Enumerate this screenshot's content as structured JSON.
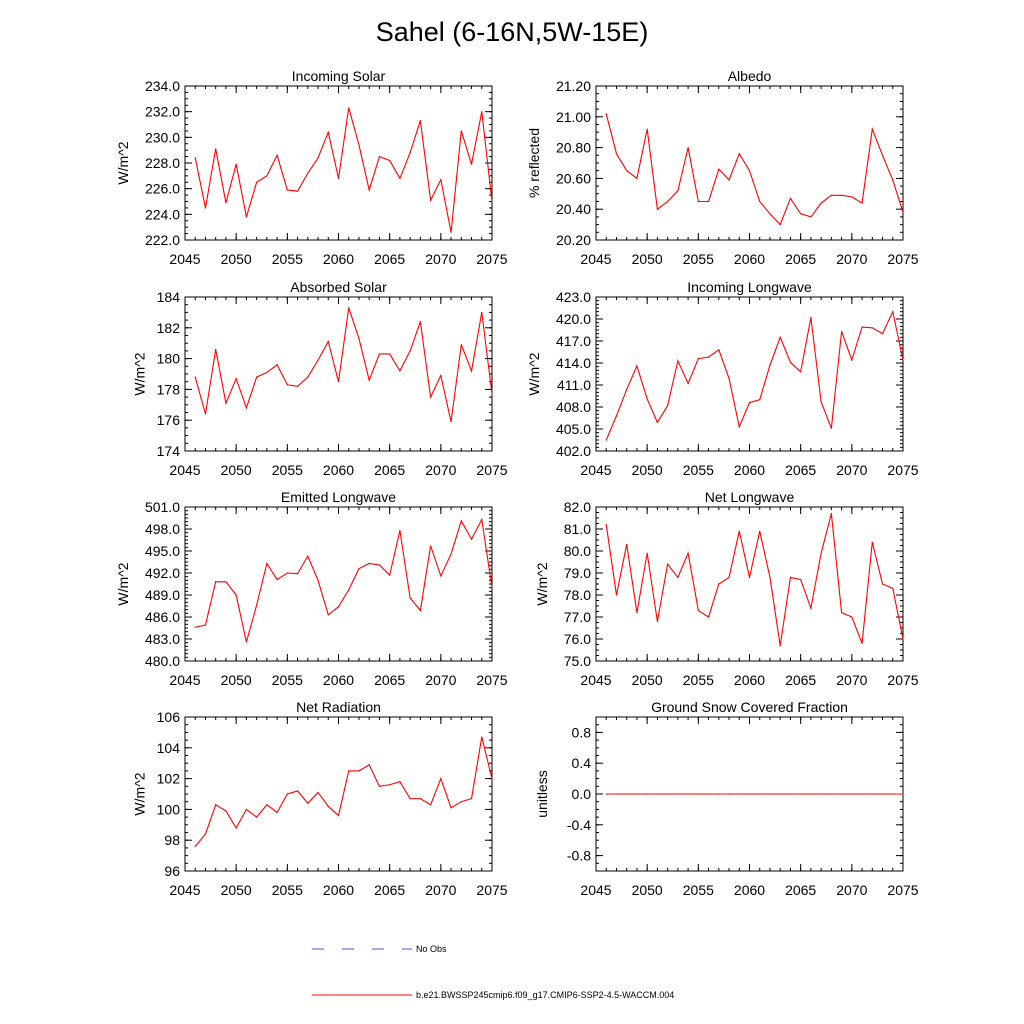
{
  "figure_title": "Sahel (6-16N,5W-15E)",
  "colors": {
    "model": "#ff0000",
    "obs": "#4a5ad8",
    "axis": "#000000"
  },
  "legend": {
    "obs_label": "No Obs",
    "model_label": "b.e21.BWSSP245cmip6.f09_g17.CMIP6-SSP2-4.5-WACCM.004"
  },
  "chart_data": [
    {
      "type": "line",
      "title": "Incoming Solar",
      "xlabel": "",
      "ylabel": "W/m^2",
      "xlim": [
        2045,
        2075
      ],
      "ylim": [
        222,
        234
      ],
      "xticks": [
        2045,
        2050,
        2055,
        2060,
        2065,
        2070,
        2075
      ],
      "yticks": [
        222,
        224,
        226,
        228,
        230,
        232,
        234
      ],
      "ytick_labels": [
        "222.0",
        "224.0",
        "226.0",
        "228.0",
        "230.0",
        "232.0",
        "234.0"
      ],
      "yminor_step": 0.5,
      "xminor_step": 1,
      "series": [
        {
          "name": "b.e21.BWSSP245cmip6.f09_g17.CMIP6-SSP2-4.5-WACCM.004",
          "x": [
            2046,
            2047,
            2048,
            2049,
            2050,
            2051,
            2052,
            2053,
            2054,
            2055,
            2056,
            2057,
            2058,
            2059,
            2060,
            2061,
            2062,
            2063,
            2064,
            2065,
            2066,
            2067,
            2068,
            2069,
            2070,
            2071,
            2072,
            2073,
            2074,
            2075
          ],
          "values": [
            228.4,
            224.5,
            229.1,
            224.9,
            227.9,
            223.8,
            226.5,
            227.0,
            228.6,
            225.9,
            225.8,
            227.2,
            228.4,
            230.4,
            226.8,
            232.3,
            229.4,
            225.9,
            228.5,
            228.2,
            226.8,
            228.8,
            231.3,
            225.1,
            226.7,
            222.6,
            230.5,
            227.9,
            232.0,
            225.0
          ]
        }
      ]
    },
    {
      "type": "line",
      "title": "Albedo",
      "xlabel": "",
      "ylabel": "% reflected",
      "xlim": [
        2045,
        2075
      ],
      "ylim": [
        20.2,
        21.2
      ],
      "xticks": [
        2045,
        2050,
        2055,
        2060,
        2065,
        2070,
        2075
      ],
      "yticks": [
        20.2,
        20.4,
        20.6,
        20.8,
        21.0,
        21.2
      ],
      "ytick_labels": [
        "20.20",
        "20.40",
        "20.60",
        "20.80",
        "21.00",
        "21.20"
      ],
      "yminor_step": 0.05,
      "xminor_step": 1,
      "series": [
        {
          "name": "b.e21.BWSSP245cmip6.f09_g17.CMIP6-SSP2-4.5-WACCM.004",
          "x": [
            2046,
            2047,
            2048,
            2049,
            2050,
            2051,
            2052,
            2053,
            2054,
            2055,
            2056,
            2057,
            2058,
            2059,
            2060,
            2061,
            2062,
            2063,
            2064,
            2065,
            2066,
            2067,
            2068,
            2069,
            2070,
            2071,
            2072,
            2073,
            2074,
            2075
          ],
          "values": [
            21.02,
            20.76,
            20.65,
            20.6,
            20.92,
            20.4,
            20.45,
            20.52,
            20.8,
            20.45,
            20.45,
            20.66,
            20.59,
            20.76,
            20.65,
            20.45,
            20.37,
            20.3,
            20.47,
            20.37,
            20.35,
            20.44,
            20.49,
            20.49,
            20.48,
            20.44,
            20.92,
            20.75,
            20.59,
            20.38
          ]
        }
      ]
    },
    {
      "type": "line",
      "title": "Absorbed Solar",
      "xlabel": "",
      "ylabel": "W/m^2",
      "xlim": [
        2045,
        2075
      ],
      "ylim": [
        174,
        184
      ],
      "xticks": [
        2045,
        2050,
        2055,
        2060,
        2065,
        2070,
        2075
      ],
      "yticks": [
        174,
        176,
        178,
        180,
        182,
        184
      ],
      "ytick_labels": [
        "174",
        "176",
        "178",
        "180",
        "182",
        "184"
      ],
      "yminor_step": 0.5,
      "xminor_step": 1,
      "series": [
        {
          "name": "b.e21.BWSSP245cmip6.f09_g17.CMIP6-SSP2-4.5-WACCM.004",
          "x": [
            2046,
            2047,
            2048,
            2049,
            2050,
            2051,
            2052,
            2053,
            2054,
            2055,
            2056,
            2057,
            2058,
            2059,
            2060,
            2061,
            2062,
            2063,
            2064,
            2065,
            2066,
            2067,
            2068,
            2069,
            2070,
            2071,
            2072,
            2073,
            2074,
            2075
          ],
          "values": [
            178.8,
            176.4,
            180.6,
            177.1,
            178.7,
            176.8,
            178.8,
            179.1,
            179.6,
            178.3,
            178.2,
            178.8,
            179.9,
            181.1,
            178.5,
            183.3,
            181.3,
            178.6,
            180.3,
            180.3,
            179.2,
            180.5,
            182.4,
            177.5,
            178.9,
            175.9,
            180.9,
            179.2,
            183.0,
            177.7
          ]
        }
      ]
    },
    {
      "type": "line",
      "title": "Incoming Longwave",
      "xlabel": "",
      "ylabel": "W/m^2",
      "xlim": [
        2045,
        2075
      ],
      "ylim": [
        402,
        423
      ],
      "xticks": [
        2045,
        2050,
        2055,
        2060,
        2065,
        2070,
        2075
      ],
      "yticks": [
        402,
        405,
        408,
        411,
        414,
        417,
        420,
        423
      ],
      "ytick_labels": [
        "402.0",
        "405.0",
        "408.0",
        "411.0",
        "414.0",
        "417.0",
        "420.0",
        "423.0"
      ],
      "yminor_step": 0.5,
      "xminor_step": 1,
      "series": [
        {
          "name": "b.e21.BWSSP245cmip6.f09_g17.CMIP6-SSP2-4.5-WACCM.004",
          "x": [
            2046,
            2047,
            2048,
            2049,
            2050,
            2051,
            2052,
            2053,
            2054,
            2055,
            2056,
            2057,
            2058,
            2059,
            2060,
            2061,
            2062,
            2063,
            2064,
            2065,
            2066,
            2067,
            2068,
            2069,
            2070,
            2071,
            2072,
            2073,
            2074,
            2075
          ],
          "values": [
            403.5,
            406.8,
            410.4,
            413.6,
            409.1,
            405.9,
            408.2,
            414.3,
            411.2,
            414.6,
            414.8,
            415.8,
            411.9,
            405.3,
            408.6,
            409.0,
            413.7,
            417.5,
            414.1,
            412.8,
            420.2,
            408.7,
            405.1,
            418.3,
            414.4,
            418.9,
            418.8,
            418.0,
            421.0,
            414.4
          ]
        }
      ]
    },
    {
      "type": "line",
      "title": "Emitted Longwave",
      "xlabel": "",
      "ylabel": "W/m^2",
      "xlim": [
        2045,
        2075
      ],
      "ylim": [
        480,
        501
      ],
      "xticks": [
        2045,
        2050,
        2055,
        2060,
        2065,
        2070,
        2075
      ],
      "yticks": [
        480,
        483,
        486,
        489,
        492,
        495,
        498,
        501
      ],
      "ytick_labels": [
        "480.0",
        "483.0",
        "486.0",
        "489.0",
        "492.0",
        "495.0",
        "498.0",
        "501.0"
      ],
      "yminor_step": 0.5,
      "xminor_step": 1,
      "series": [
        {
          "name": "b.e21.BWSSP245cmip6.f09_g17.CMIP6-SSP2-4.5-WACCM.004",
          "x": [
            2046,
            2047,
            2048,
            2049,
            2050,
            2051,
            2052,
            2053,
            2054,
            2055,
            2056,
            2057,
            2058,
            2059,
            2060,
            2061,
            2062,
            2063,
            2064,
            2065,
            2066,
            2067,
            2068,
            2069,
            2070,
            2071,
            2072,
            2073,
            2074,
            2075
          ],
          "values": [
            484.6,
            484.9,
            490.8,
            490.8,
            489.0,
            482.6,
            487.6,
            493.3,
            491.1,
            492.0,
            491.9,
            494.3,
            491.0,
            486.3,
            487.4,
            489.7,
            492.6,
            493.3,
            493.1,
            491.7,
            497.8,
            488.6,
            486.9,
            495.7,
            491.6,
            494.6,
            499.1,
            496.6,
            499.3,
            490.0
          ]
        }
      ]
    },
    {
      "type": "line",
      "title": "Net Longwave",
      "xlabel": "",
      "ylabel": "W/m^2",
      "xlim": [
        2045,
        2075
      ],
      "ylim": [
        75,
        82
      ],
      "xticks": [
        2045,
        2050,
        2055,
        2060,
        2065,
        2070,
        2075
      ],
      "yticks": [
        75,
        76,
        77,
        78,
        79,
        80,
        81,
        82
      ],
      "ytick_labels": [
        "75.0",
        "76.0",
        "77.0",
        "78.0",
        "79.0",
        "80.0",
        "81.0",
        "82.0"
      ],
      "yminor_step": 0.25,
      "xminor_step": 1,
      "series": [
        {
          "name": "b.e21.BWSSP245cmip6.f09_g17.CMIP6-SSP2-4.5-WACCM.004",
          "x": [
            2046,
            2047,
            2048,
            2049,
            2050,
            2051,
            2052,
            2053,
            2054,
            2055,
            2056,
            2057,
            2058,
            2059,
            2060,
            2061,
            2062,
            2063,
            2064,
            2065,
            2066,
            2067,
            2068,
            2069,
            2070,
            2071,
            2072,
            2073,
            2074,
            2075
          ],
          "values": [
            81.2,
            78.0,
            80.3,
            77.2,
            79.9,
            76.8,
            79.4,
            78.8,
            79.9,
            77.3,
            77.0,
            78.5,
            78.8,
            80.9,
            78.8,
            80.9,
            78.8,
            75.7,
            78.8,
            78.7,
            77.4,
            79.9,
            81.7,
            77.2,
            77.0,
            75.8,
            80.4,
            78.5,
            78.3,
            76.0
          ]
        }
      ]
    },
    {
      "type": "line",
      "title": "Net Radiation",
      "xlabel": "",
      "ylabel": "W/m^2",
      "xlim": [
        2045,
        2075
      ],
      "ylim": [
        96,
        106
      ],
      "xticks": [
        2045,
        2050,
        2055,
        2060,
        2065,
        2070,
        2075
      ],
      "yticks": [
        96,
        98,
        100,
        102,
        104,
        106
      ],
      "ytick_labels": [
        "96",
        "98",
        "100",
        "102",
        "104",
        "106"
      ],
      "yminor_step": 0.5,
      "xminor_step": 1,
      "series": [
        {
          "name": "b.e21.BWSSP245cmip6.f09_g17.CMIP6-SSP2-4.5-WACCM.004",
          "x": [
            2046,
            2047,
            2048,
            2049,
            2050,
            2051,
            2052,
            2053,
            2054,
            2055,
            2056,
            2057,
            2058,
            2059,
            2060,
            2061,
            2062,
            2063,
            2064,
            2065,
            2066,
            2067,
            2068,
            2069,
            2070,
            2071,
            2072,
            2073,
            2074,
            2075
          ],
          "values": [
            97.6,
            98.4,
            100.3,
            99.9,
            98.8,
            100.0,
            99.5,
            100.3,
            99.8,
            101.0,
            101.2,
            100.4,
            101.1,
            100.2,
            99.6,
            102.5,
            102.5,
            102.9,
            101.5,
            101.6,
            101.8,
            100.7,
            100.7,
            100.3,
            102.0,
            100.1,
            100.5,
            100.7,
            104.7,
            102.0
          ]
        }
      ]
    },
    {
      "type": "line",
      "title": "Ground Snow Covered Fraction",
      "xlabel": "",
      "ylabel": "unitless",
      "xlim": [
        2045,
        2075
      ],
      "ylim": [
        -1.0,
        1.0
      ],
      "xticks": [
        2045,
        2050,
        2055,
        2060,
        2065,
        2070,
        2075
      ],
      "yticks": [
        -0.8,
        -0.4,
        0.0,
        0.4,
        0.8
      ],
      "ytick_labels": [
        "-0.8",
        "-0.4",
        "0.0",
        "0.4",
        "0.8"
      ],
      "yminor_step": 0.1,
      "xminor_step": 1,
      "series": [
        {
          "name": "b.e21.BWSSP245cmip6.f09_g17.CMIP6-SSP2-4.5-WACCM.004",
          "x": [
            2046,
            2047,
            2048,
            2049,
            2050,
            2051,
            2052,
            2053,
            2054,
            2055,
            2056,
            2057,
            2058,
            2059,
            2060,
            2061,
            2062,
            2063,
            2064,
            2065,
            2066,
            2067,
            2068,
            2069,
            2070,
            2071,
            2072,
            2073,
            2074,
            2075
          ],
          "values": [
            0,
            0,
            0,
            0,
            0,
            0,
            0,
            0,
            0,
            0,
            0,
            0,
            0,
            0,
            0,
            0,
            0,
            0,
            0,
            0,
            0,
            0,
            0,
            0,
            0,
            0,
            0,
            0,
            0,
            0
          ]
        }
      ]
    }
  ]
}
